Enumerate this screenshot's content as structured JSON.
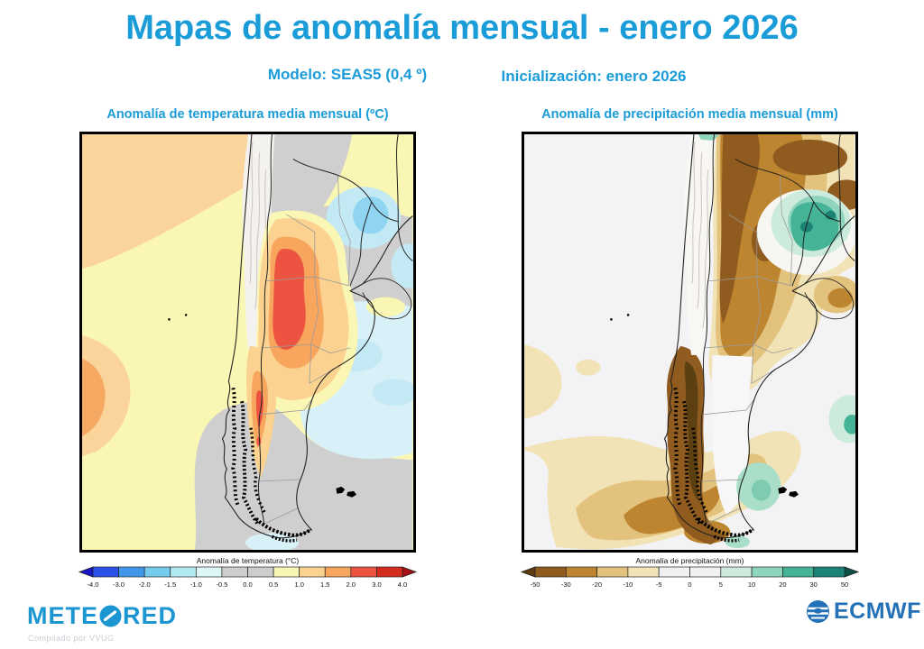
{
  "header": {
    "title": "Mapas de anomalía mensual - enero 2026",
    "model_label": "Modelo: SEAS5 (0,4 º)",
    "init_label": "Inicialización: enero 2026"
  },
  "maps": {
    "temperature": {
      "title": "Anomalía de temperatura media mensual (ºC)",
      "colorbar": {
        "title": "Anomalía de temperatura (°C)",
        "ticks": [
          "-4.0",
          "-3.0",
          "-2.0",
          "-1.5",
          "-1.0",
          "-0.5",
          "0.0",
          "0.5",
          "1.0",
          "1.5",
          "2.0",
          "3.0",
          "4.0"
        ],
        "colors": [
          "#2A52E8",
          "#4096E8",
          "#74CBEC",
          "#B2E9F0",
          "#DDF6F6",
          "#CDCDCD",
          "#CDCDCD",
          "#FAF6B4",
          "#FBD28F",
          "#F8A55D",
          "#EC5340",
          "#D32B1E"
        ],
        "arrow_left": "#1818C8",
        "arrow_right": "#A50F15"
      }
    },
    "precipitation": {
      "title": "Anomalía de precipitación (mm)",
      "map_title": "Anomalía de precipitación media mensual (mm)",
      "colorbar": {
        "title": "Anomalía de precipitación (mm)",
        "ticks": [
          "-50",
          "-30",
          "-20",
          "-10",
          "-5",
          "0",
          "5",
          "10",
          "20",
          "30",
          "50"
        ],
        "colors": [
          "#8F5B1E",
          "#BE8530",
          "#E3C27E",
          "#F2E3B6",
          "#F1F1F3",
          "#F1F1F3",
          "#CDEBDC",
          "#8FD4BC",
          "#45B396",
          "#1B8275"
        ],
        "arrow_left": "#5C3A12",
        "arrow_right": "#0C5148"
      }
    }
  },
  "footer": {
    "brand": "METEORED",
    "brand_left": "METE",
    "brand_right": "RED",
    "compiled": "Compilado por VVUG",
    "ecmwf": "ECMWF"
  },
  "colors": {
    "accent_blue": "#1A9CD8",
    "meteored_blue": "#1B96D2",
    "ecmwf_blue": "#2471B8"
  }
}
